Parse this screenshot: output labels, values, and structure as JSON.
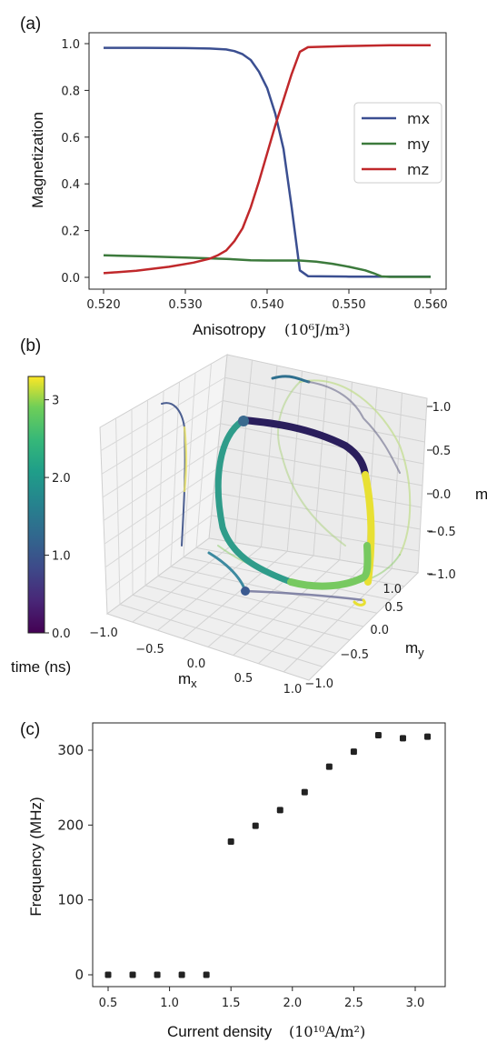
{
  "panels": {
    "a": "(a)",
    "b": "(b)",
    "c": "(c)"
  },
  "chart_data": [
    {
      "type": "line",
      "panel": "(a)",
      "title": "",
      "xlabel": "Anisotropy",
      "xunit": "(10⁶J/m³)",
      "ylabel": "Magnetization",
      "xlim": [
        0.52,
        0.56
      ],
      "ylim": [
        0.0,
        1.0
      ],
      "xticks": [
        "0.520",
        "0.530",
        "0.540",
        "0.550",
        "0.560"
      ],
      "yticks": [
        "0.0",
        "0.2",
        "0.4",
        "0.6",
        "0.8",
        "1.0"
      ],
      "legend_position": "right",
      "series": [
        {
          "name": "mx",
          "color": "#3b4f91",
          "x": [
            0.52,
            0.525,
            0.53,
            0.533,
            0.535,
            0.536,
            0.537,
            0.538,
            0.539,
            0.54,
            0.541,
            0.542,
            0.543,
            0.544,
            0.545,
            0.55,
            0.555,
            0.56
          ],
          "y": [
            0.982,
            0.982,
            0.981,
            0.979,
            0.975,
            0.968,
            0.955,
            0.93,
            0.88,
            0.81,
            0.7,
            0.55,
            0.3,
            0.03,
            0.005,
            0.003,
            0.003,
            0.003
          ]
        },
        {
          "name": "my",
          "color": "#3c7a3c",
          "x": [
            0.52,
            0.525,
            0.53,
            0.535,
            0.538,
            0.54,
            0.542,
            0.544,
            0.546,
            0.548,
            0.55,
            0.552,
            0.553,
            0.554,
            0.555,
            0.56
          ],
          "y": [
            0.094,
            0.09,
            0.085,
            0.079,
            0.073,
            0.072,
            0.072,
            0.072,
            0.067,
            0.058,
            0.045,
            0.03,
            0.018,
            0.004,
            0.002,
            0.002
          ]
        },
        {
          "name": "mz",
          "color": "#c0282b",
          "x": [
            0.52,
            0.524,
            0.528,
            0.531,
            0.533,
            0.534,
            0.535,
            0.536,
            0.537,
            0.538,
            0.539,
            0.54,
            0.541,
            0.542,
            0.543,
            0.544,
            0.545,
            0.55,
            0.555,
            0.56
          ],
          "y": [
            0.018,
            0.028,
            0.045,
            0.063,
            0.08,
            0.095,
            0.115,
            0.155,
            0.21,
            0.3,
            0.41,
            0.53,
            0.65,
            0.76,
            0.87,
            0.965,
            0.985,
            0.99,
            0.993,
            0.993
          ]
        }
      ]
    },
    {
      "type": "line3d",
      "panel": "(b)",
      "xlabel": "mx",
      "ylabel": "my",
      "zlabel": "m",
      "xticks": [
        "−1.0",
        "−0.5",
        "0.0",
        "0.5",
        "1.0"
      ],
      "yticks": [
        "1.0",
        "0.5",
        "0.0",
        "−0.5",
        "−1.0"
      ],
      "zticks": [
        "1.0",
        "0.5",
        "0.0",
        "−0.5",
        "−1.0"
      ],
      "colorbar": {
        "label": "time (ns)",
        "ticks": [
          "0.0",
          "1.0",
          "2.0",
          "3"
        ],
        "range": [
          0.0,
          3.3
        ],
        "colormap": "viridis"
      }
    },
    {
      "type": "scatter",
      "panel": "(c)",
      "xlabel": "Current density",
      "xunit": "(10¹⁰A/m²)",
      "ylabel": "Frequency (MHz)",
      "xlim": [
        0.4,
        3.2
      ],
      "ylim": [
        -10,
        340
      ],
      "xticks": [
        "0.5",
        "1.0",
        "1.5",
        "2.0",
        "2.5",
        "3.0"
      ],
      "yticks": [
        "0",
        "100",
        "200",
        "300"
      ],
      "color": "#222222",
      "x": [
        0.5,
        0.7,
        0.9,
        1.1,
        1.3,
        1.5,
        1.7,
        1.9,
        2.1,
        2.3,
        2.5,
        2.7,
        2.9,
        3.1
      ],
      "y": [
        0,
        0,
        0,
        0,
        0,
        178,
        199,
        220,
        244,
        278,
        298,
        320,
        316,
        318
      ]
    }
  ]
}
